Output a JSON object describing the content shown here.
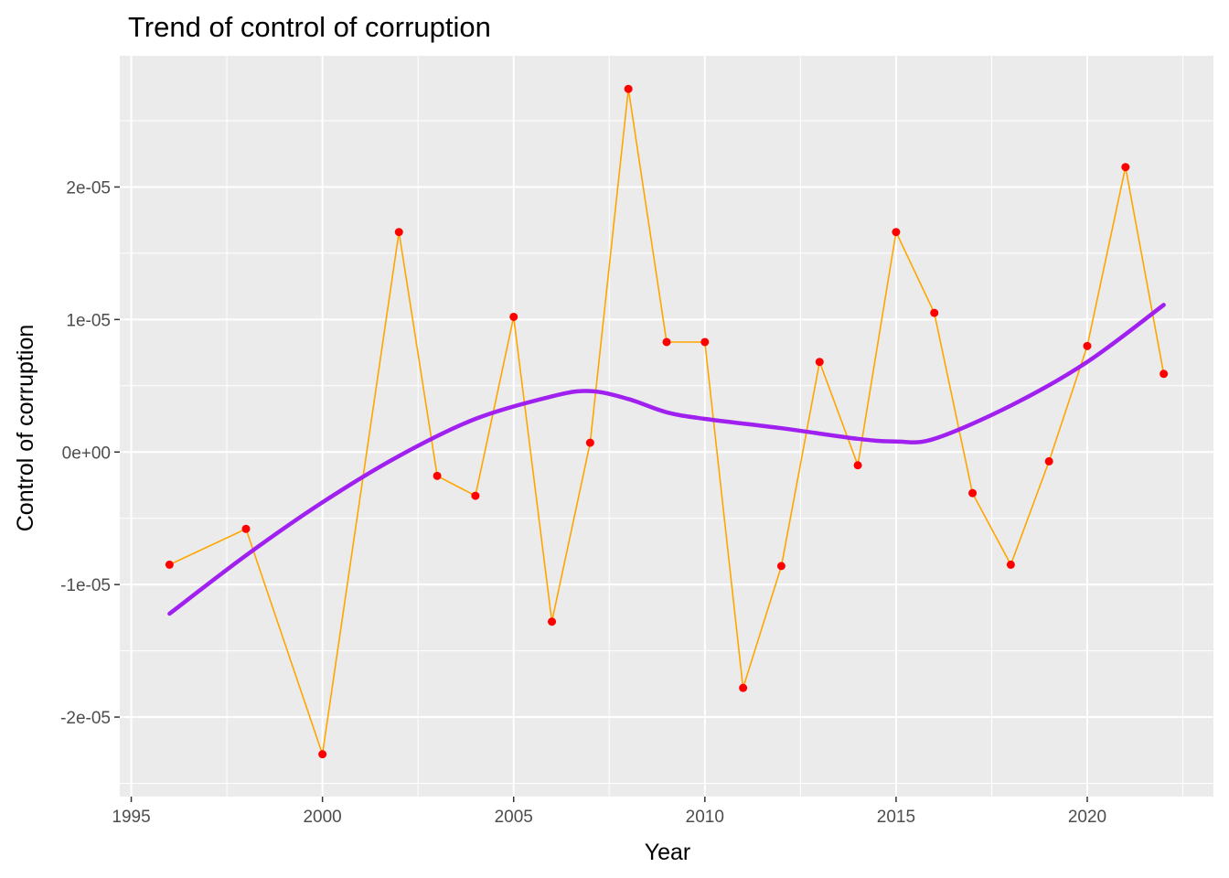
{
  "chart_data": {
    "type": "line",
    "title": "Trend of control of corruption",
    "xlabel": "Year",
    "ylabel": "Control of corruption",
    "xlim": [
      1994.7,
      2023.3
    ],
    "ylim": [
      -2.6e-05,
      2.99e-05
    ],
    "x_ticks": [
      1995,
      2000,
      2005,
      2010,
      2015,
      2020
    ],
    "x_tick_labels": [
      "1995",
      "2000",
      "2005",
      "2010",
      "2015",
      "2020"
    ],
    "y_ticks": [
      -2e-05,
      -1e-05,
      0,
      1e-05,
      2e-05
    ],
    "y_tick_labels": [
      "-2e-05",
      "-1e-05",
      "0e+00",
      "1e-05",
      "2e-05"
    ],
    "grid": true,
    "series": [
      {
        "type": "line+points",
        "line_color": "#FFA500",
        "point_color": "#FF0000",
        "x": [
          1996,
          1998,
          2000,
          2002,
          2003,
          2004,
          2005,
          2006,
          2007,
          2008,
          2009,
          2010,
          2011,
          2012,
          2013,
          2014,
          2015,
          2016,
          2017,
          2018,
          2019,
          2020,
          2021,
          2022
        ],
        "y": [
          -8.5e-06,
          -5.8e-06,
          -2.28e-05,
          1.66e-05,
          -1.8e-06,
          -3.3e-06,
          1.02e-05,
          -1.28e-05,
          7e-07,
          2.74e-05,
          8.3e-06,
          8.3e-06,
          -1.78e-05,
          -8.6e-06,
          6.8e-06,
          -1e-06,
          1.66e-05,
          1.05e-05,
          -3.1e-06,
          -8.5e-06,
          -7e-07,
          8e-06,
          2.15e-05,
          5.9e-06
        ]
      },
      {
        "type": "smooth",
        "line_color": "#A020F0",
        "x": [
          1996,
          1998,
          2000,
          2002,
          2004,
          2006,
          2007,
          2008,
          2009,
          2010,
          2012,
          2014,
          2015,
          2016,
          2018,
          2020,
          2022
        ],
        "y": [
          -1.22e-05,
          -7.8e-06,
          -3.8e-06,
          -3e-07,
          2.5e-06,
          4.2e-06,
          4.6e-06,
          4e-06,
          3e-06,
          2.5e-06,
          1.8e-06,
          1e-06,
          8e-07,
          1e-06,
          3.5e-06,
          6.8e-06,
          1.11e-05
        ]
      }
    ]
  }
}
